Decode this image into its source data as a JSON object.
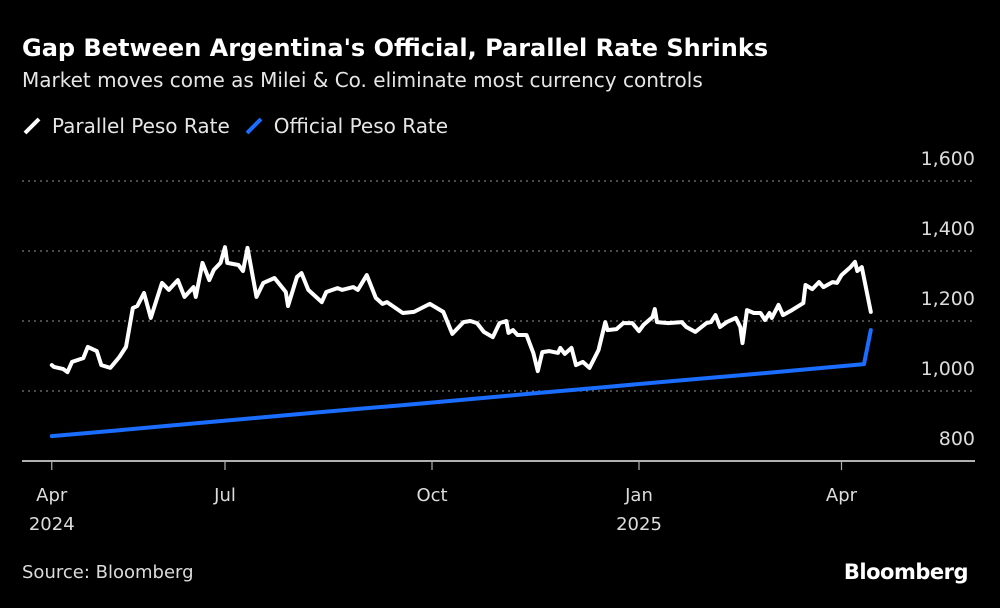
{
  "header": {
    "title": "Gap Between Argentina's Official, Parallel Rate Shrinks",
    "subtitle": "Market moves come as Milei & Co. eliminate most currency controls"
  },
  "footer": {
    "source": "Source: Bloomberg",
    "logo": "Bloomberg"
  },
  "chart_data": {
    "type": "line",
    "title": "Gap Between Argentina's Official, Parallel Rate Shrinks",
    "subtitle": "Market moves come as Milei & Co. eliminate most currency controls",
    "xlabel": "",
    "ylabel": "",
    "ylim": [
      800,
      1600
    ],
    "yticks": [
      {
        "value": 1600,
        "label": "1,600"
      },
      {
        "value": 1400,
        "label": "1,400"
      },
      {
        "value": 1200,
        "label": "1,200"
      },
      {
        "value": 1000,
        "label": "1,000"
      },
      {
        "value": 800,
        "label": "800"
      }
    ],
    "xticks": [
      {
        "date": "2024-04-01",
        "label": "Apr",
        "year": "2024"
      },
      {
        "date": "2024-07-01",
        "label": "Jul",
        "year": ""
      },
      {
        "date": "2024-10-01",
        "label": "Oct",
        "year": ""
      },
      {
        "date": "2025-01-01",
        "label": "Jan",
        "year": "2025"
      },
      {
        "date": "2025-04-01",
        "label": "Apr",
        "year": ""
      }
    ],
    "grid": "horizontal dotted",
    "legend_position": "top-left",
    "series": [
      {
        "name": "Parallel Peso Rate",
        "color": "#ffffff",
        "points": [
          [
            "2024-04-15",
            1074
          ],
          [
            "2024-04-16",
            1069
          ],
          [
            "2024-04-20",
            1063
          ],
          [
            "2024-04-22",
            1054
          ],
          [
            "2024-04-24",
            1083
          ],
          [
            "2024-04-29",
            1094
          ],
          [
            "2024-05-01",
            1126
          ],
          [
            "2024-05-05",
            1114
          ],
          [
            "2024-05-07",
            1074
          ],
          [
            "2024-05-11",
            1066
          ],
          [
            "2024-05-15",
            1097
          ],
          [
            "2024-05-18",
            1126
          ],
          [
            "2024-05-21",
            1237
          ],
          [
            "2024-05-23",
            1243
          ],
          [
            "2024-05-26",
            1280
          ],
          [
            "2024-05-29",
            1209
          ],
          [
            "2024-06-03",
            1309
          ],
          [
            "2024-06-06",
            1289
          ],
          [
            "2024-06-10",
            1317
          ],
          [
            "2024-06-13",
            1269
          ],
          [
            "2024-06-17",
            1297
          ],
          [
            "2024-06-18",
            1269
          ],
          [
            "2024-06-21",
            1366
          ],
          [
            "2024-06-24",
            1317
          ],
          [
            "2024-06-26",
            1346
          ],
          [
            "2024-06-29",
            1366
          ],
          [
            "2024-07-01",
            1411
          ],
          [
            "2024-07-02",
            1366
          ],
          [
            "2024-07-07",
            1360
          ],
          [
            "2024-07-09",
            1343
          ],
          [
            "2024-07-11",
            1409
          ],
          [
            "2024-07-15",
            1269
          ],
          [
            "2024-07-18",
            1309
          ],
          [
            "2024-07-23",
            1323
          ],
          [
            "2024-07-28",
            1283
          ],
          [
            "2024-07-29",
            1243
          ],
          [
            "2024-08-02",
            1326
          ],
          [
            "2024-08-04",
            1337
          ],
          [
            "2024-08-07",
            1289
          ],
          [
            "2024-08-13",
            1254
          ],
          [
            "2024-08-15",
            1283
          ],
          [
            "2024-08-20",
            1294
          ],
          [
            "2024-08-22",
            1289
          ],
          [
            "2024-08-27",
            1297
          ],
          [
            "2024-08-29",
            1289
          ],
          [
            "2024-09-02",
            1331
          ],
          [
            "2024-09-06",
            1266
          ],
          [
            "2024-09-09",
            1249
          ],
          [
            "2024-09-11",
            1254
          ],
          [
            "2024-09-18",
            1223
          ],
          [
            "2024-09-23",
            1226
          ],
          [
            "2024-09-30",
            1249
          ],
          [
            "2024-10-06",
            1226
          ],
          [
            "2024-10-10",
            1163
          ],
          [
            "2024-10-15",
            1197
          ],
          [
            "2024-10-18",
            1200
          ],
          [
            "2024-10-21",
            1194
          ],
          [
            "2024-10-24",
            1169
          ],
          [
            "2024-10-28",
            1154
          ],
          [
            "2024-10-31",
            1194
          ],
          [
            "2024-11-03",
            1200
          ],
          [
            "2024-11-04",
            1166
          ],
          [
            "2024-11-06",
            1174
          ],
          [
            "2024-11-08",
            1160
          ],
          [
            "2024-11-12",
            1160
          ],
          [
            "2024-11-15",
            1109
          ],
          [
            "2024-11-17",
            1057
          ],
          [
            "2024-11-19",
            1111
          ],
          [
            "2024-11-22",
            1114
          ],
          [
            "2024-11-26",
            1109
          ],
          [
            "2024-11-27",
            1123
          ],
          [
            "2024-11-29",
            1106
          ],
          [
            "2024-12-02",
            1123
          ],
          [
            "2024-12-04",
            1074
          ],
          [
            "2024-12-07",
            1083
          ],
          [
            "2024-12-10",
            1066
          ],
          [
            "2024-12-14",
            1117
          ],
          [
            "2024-12-17",
            1197
          ],
          [
            "2024-12-18",
            1174
          ],
          [
            "2024-12-22",
            1177
          ],
          [
            "2024-12-25",
            1194
          ],
          [
            "2024-12-29",
            1194
          ],
          [
            "2025-01-01",
            1171
          ],
          [
            "2025-01-03",
            1189
          ],
          [
            "2025-01-07",
            1211
          ],
          [
            "2025-01-08",
            1234
          ],
          [
            "2025-01-09",
            1197
          ],
          [
            "2025-01-14",
            1194
          ],
          [
            "2025-01-20",
            1197
          ],
          [
            "2025-01-22",
            1183
          ],
          [
            "2025-01-26",
            1169
          ],
          [
            "2025-01-31",
            1194
          ],
          [
            "2025-02-02",
            1197
          ],
          [
            "2025-02-04",
            1217
          ],
          [
            "2025-02-06",
            1183
          ],
          [
            "2025-02-09",
            1197
          ],
          [
            "2025-02-13",
            1209
          ],
          [
            "2025-02-15",
            1183
          ],
          [
            "2025-02-16",
            1137
          ],
          [
            "2025-02-18",
            1231
          ],
          [
            "2025-02-21",
            1223
          ],
          [
            "2025-02-24",
            1223
          ],
          [
            "2025-02-26",
            1203
          ],
          [
            "2025-02-28",
            1223
          ],
          [
            "2025-03-01",
            1209
          ],
          [
            "2025-03-04",
            1246
          ],
          [
            "2025-03-06",
            1217
          ],
          [
            "2025-03-10",
            1231
          ],
          [
            "2025-03-15",
            1251
          ],
          [
            "2025-03-16",
            1303
          ],
          [
            "2025-03-19",
            1291
          ],
          [
            "2025-03-22",
            1311
          ],
          [
            "2025-03-24",
            1297
          ],
          [
            "2025-03-28",
            1311
          ],
          [
            "2025-03-30",
            1309
          ],
          [
            "2025-04-01",
            1331
          ],
          [
            "2025-04-05",
            1354
          ],
          [
            "2025-04-07",
            1369
          ],
          [
            "2025-04-08",
            1343
          ],
          [
            "2025-04-10",
            1354
          ],
          [
            "2025-04-14",
            1226
          ]
        ]
      },
      {
        "name": "Official Peso Rate",
        "color": "#1a6dff",
        "points": [
          [
            "2024-04-15",
            871
          ],
          [
            "2024-05-15",
            888
          ],
          [
            "2024-06-15",
            906
          ],
          [
            "2024-07-15",
            923
          ],
          [
            "2024-08-15",
            941
          ],
          [
            "2024-09-15",
            958
          ],
          [
            "2024-10-15",
            975
          ],
          [
            "2024-11-15",
            993
          ],
          [
            "2024-12-15",
            1010
          ],
          [
            "2025-01-15",
            1028
          ],
          [
            "2025-02-15",
            1045
          ],
          [
            "2025-03-15",
            1061
          ],
          [
            "2025-04-11",
            1077
          ],
          [
            "2025-04-14",
            1174
          ]
        ]
      }
    ]
  }
}
